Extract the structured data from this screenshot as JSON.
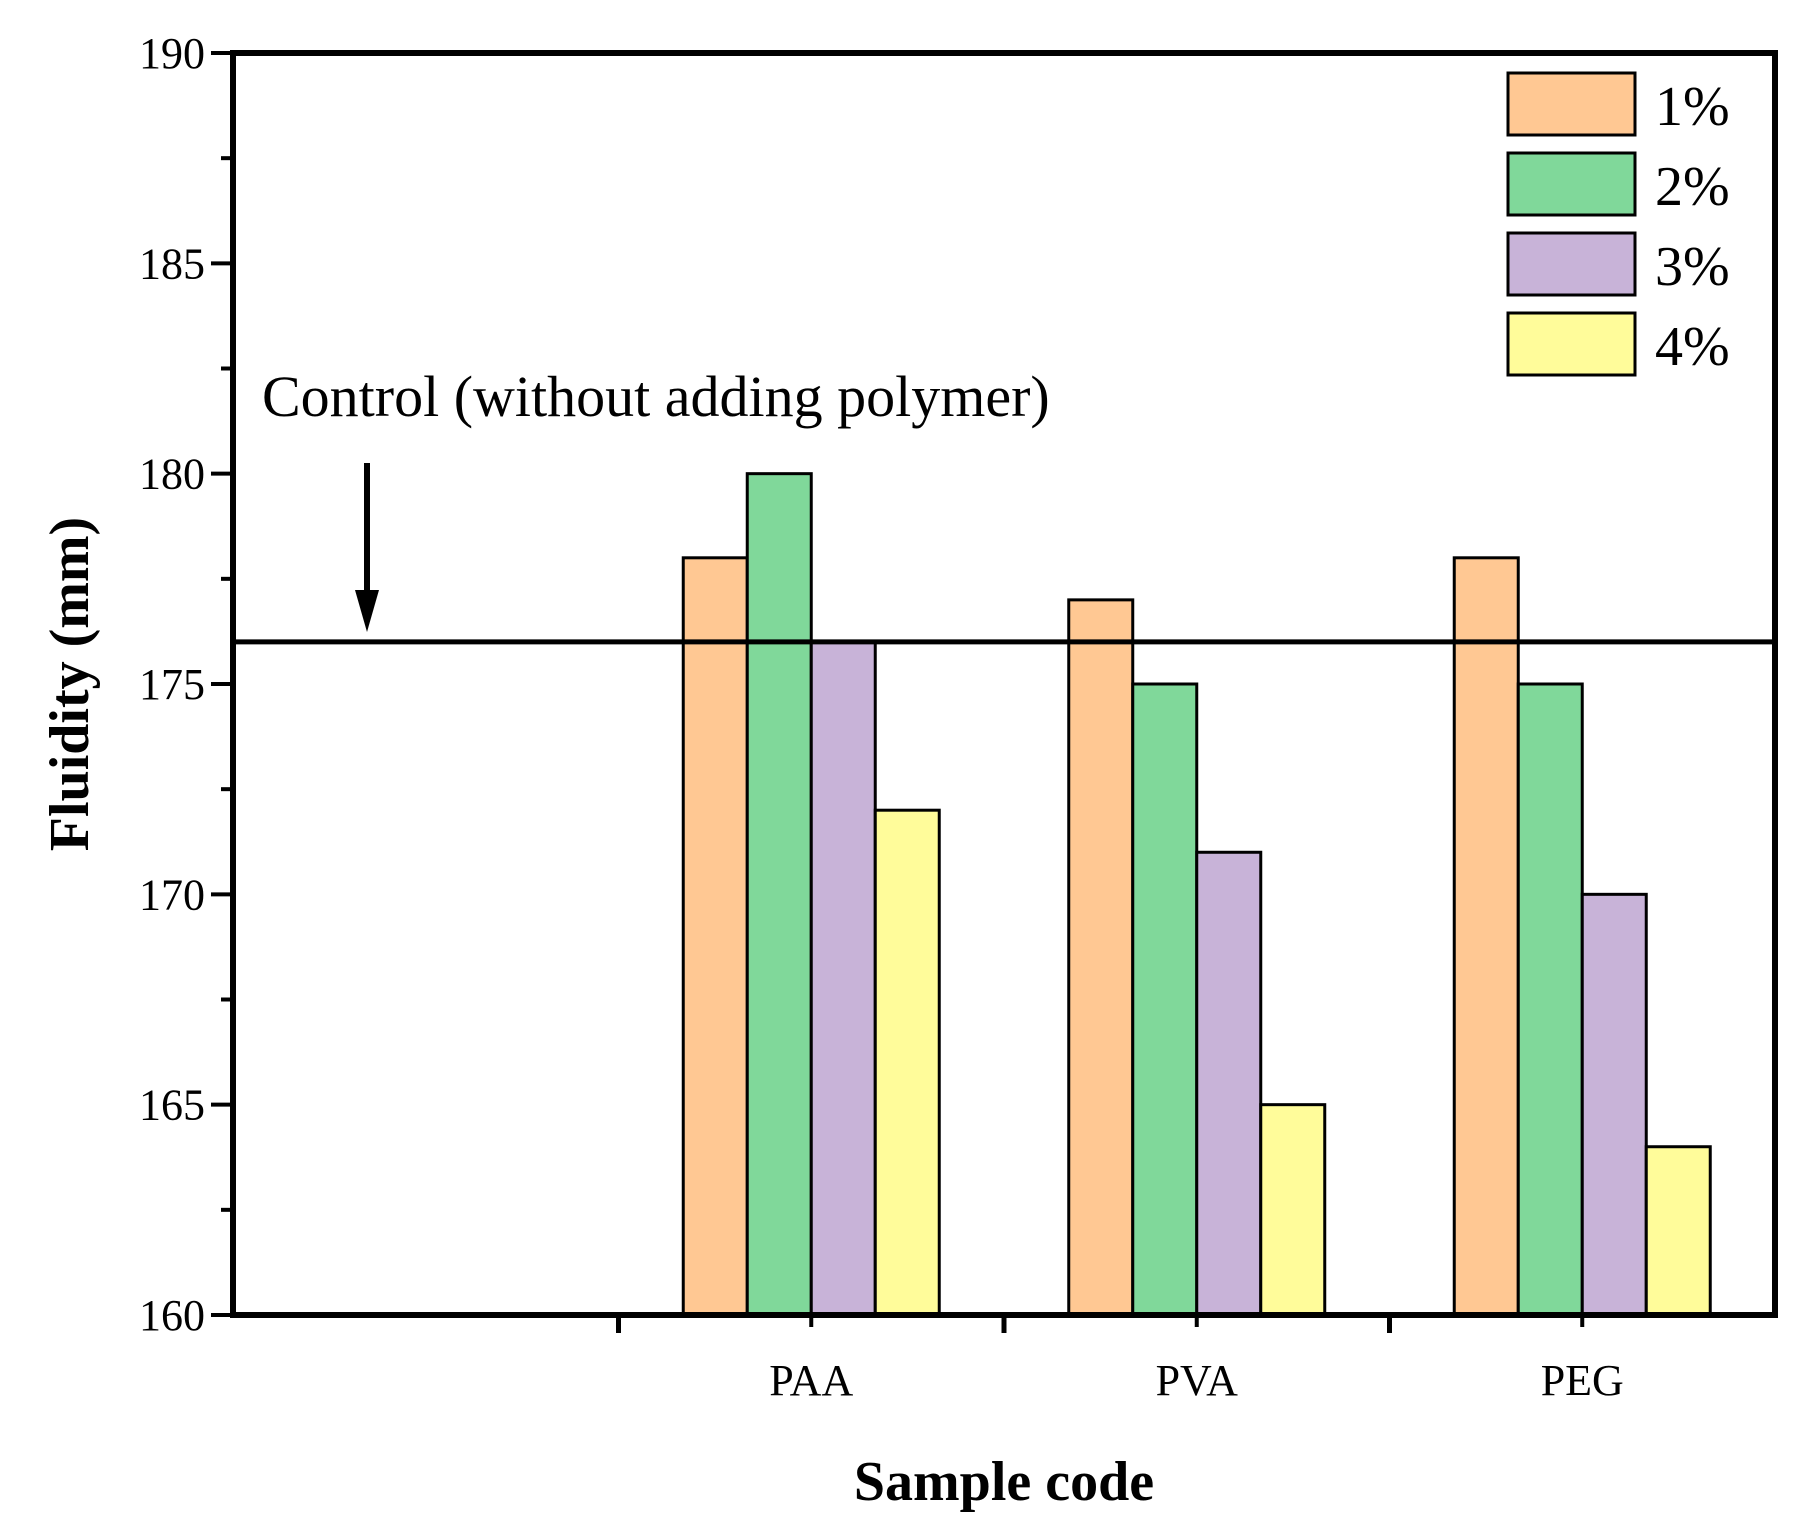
{
  "chart_data": {
    "type": "bar",
    "title": "",
    "xlabel": "Sample code",
    "ylabel": "Fluidity (mm)",
    "categories": [
      "PAA",
      "PVA",
      "PEG"
    ],
    "series": [
      {
        "name": "1%",
        "color": "#FFC893",
        "values": [
          178,
          177,
          178
        ]
      },
      {
        "name": "2%",
        "color": "#80D89A",
        "values": [
          180,
          175,
          175
        ]
      },
      {
        "name": "3%",
        "color": "#C8B3D8",
        "values": [
          176,
          171,
          170
        ]
      },
      {
        "name": "4%",
        "color": "#FFFC9A",
        "values": [
          172,
          165,
          164
        ]
      }
    ],
    "ylim": [
      160,
      190
    ],
    "yticks": [
      160,
      165,
      170,
      175,
      180,
      185,
      190
    ],
    "reference_line": {
      "value": 176,
      "label": "Control (without adding polymer)"
    },
    "legend_position": "top-right",
    "grid": false
  }
}
